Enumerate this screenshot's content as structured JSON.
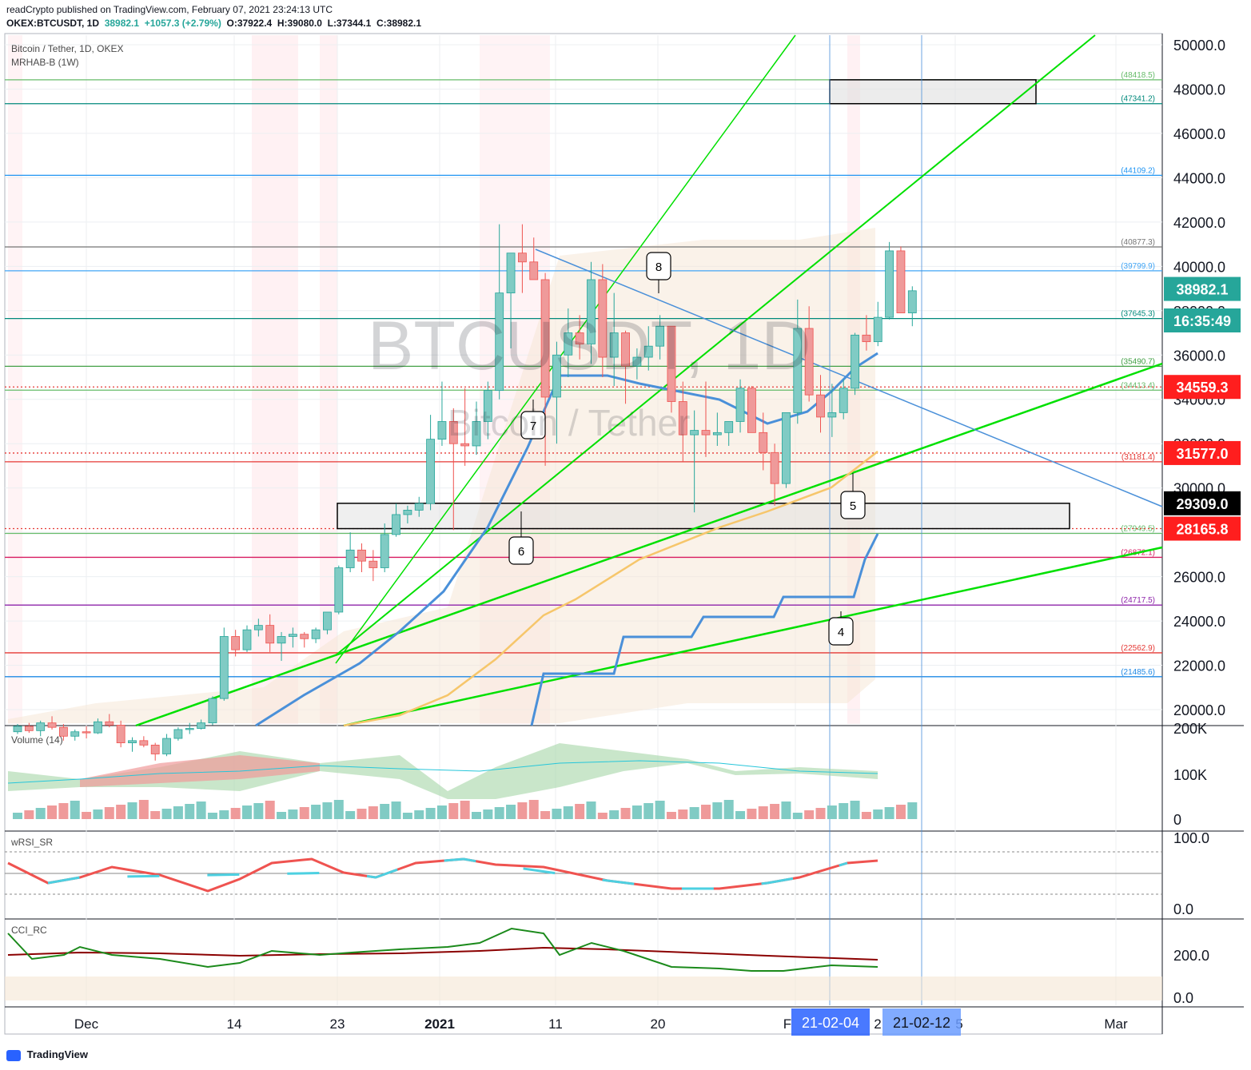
{
  "header": {
    "publisher": "readCrypto published on TradingView.com, February 07, 2021 23:24:13 UTC",
    "symbol": "OKEX:BTCUSDT, 1D",
    "last": "38982.1",
    "change": "+1057.3 (+2.79%)",
    "open": "O:37922.4",
    "high": "H:39080.0",
    "low": "L:37344.1",
    "close": "C:38982.1"
  },
  "legend": {
    "title": "Bitcoin / Tether, 1D, OKEX",
    "indicator": "MRHAB-B (1W)"
  },
  "watermark": {
    "symbol": "BTCUSDT, 1D",
    "name": "Bitcoin / Tether"
  },
  "panes": {
    "volume": "Volume (14)",
    "rsi": "wRSI_SR",
    "cci": "CCI_RC"
  },
  "footer": {
    "brand": "TradingView"
  },
  "colors": {
    "up": "#26a69a",
    "down": "#ef5350",
    "trend_green": "#00e000",
    "trend_blue": "#4a90d9"
  },
  "chart_data": {
    "type": "candlestick",
    "price_axis": {
      "ticks": [
        "20000.0",
        "22000.0",
        "24000.0",
        "26000.0",
        "28000.0",
        "30000.0",
        "32000.0",
        "34000.0",
        "36000.0",
        "38000.0",
        "40000.0",
        "42000.0",
        "44000.0",
        "46000.0",
        "48000.0",
        "50000.0"
      ],
      "range": [
        19300,
        50600
      ]
    },
    "x_ticks": [
      "Dec",
      "14",
      "23",
      "2021",
      "11",
      "20",
      "F",
      "2",
      "5",
      "Mar"
    ],
    "x_highlights": [
      "21-02-04",
      "21-02-12"
    ],
    "price_badges": [
      {
        "label": "38982.1",
        "value": 38982.1,
        "color": "#26a69a"
      },
      {
        "label": "16:35:49",
        "value": 37560,
        "color": "#26a69a"
      },
      {
        "label": "34559.3",
        "value": 34559.3,
        "color": "#ff1e1e"
      },
      {
        "label": "31577.0",
        "value": 31577.0,
        "color": "#ff1e1e"
      },
      {
        "label": "29309.0",
        "value": 29309.0,
        "color": "#000000"
      },
      {
        "label": "28165.8",
        "value": 28165.8,
        "color": "#ff1e1e"
      }
    ],
    "levels": [
      {
        "label": "(48418.5)",
        "value": 48418.5,
        "color": "#66bb6a"
      },
      {
        "label": "(47341.2)",
        "value": 47341.2,
        "color": "#00897b"
      },
      {
        "label": "(44109.2)",
        "value": 44109.2,
        "color": "#2196f3"
      },
      {
        "label": "(40877.3)",
        "value": 40877.3,
        "color": "#757575"
      },
      {
        "label": "(39799.9)",
        "value": 39799.9,
        "color": "#42a5f5"
      },
      {
        "label": "(37645.3)",
        "value": 37645.3,
        "color": "#00897b"
      },
      {
        "label": "(35490.7)",
        "value": 35490.7,
        "color": "#43a047"
      },
      {
        "label": "(34413.4)",
        "value": 34413.4,
        "color": "#66bb6a"
      },
      {
        "label": "(31181.4)",
        "value": 31181.4,
        "color": "#e53935"
      },
      {
        "label": "(27949.5)",
        "value": 27949.5,
        "color": "#66bb6a"
      },
      {
        "label": "(26872.1)",
        "value": 26872.1,
        "color": "#d81b60"
      },
      {
        "label": "(24717.5)",
        "value": 24717.5,
        "color": "#8e24aa"
      },
      {
        "label": "(22562.9)",
        "value": 22562.9,
        "color": "#e53935"
      },
      {
        "label": "(21485.6)",
        "value": 21485.6,
        "color": "#1e88e5"
      }
    ],
    "callouts": [
      "4",
      "5",
      "6",
      "7",
      "8"
    ],
    "volume_axis": [
      "200K",
      "100K",
      "0"
    ],
    "rsi_axis": [
      "100.0",
      "0.0"
    ],
    "cci_axis": [
      "200.0",
      "0.0"
    ],
    "candles_ohlc": [
      [
        19000,
        19350,
        18900,
        19250
      ],
      [
        19250,
        19400,
        18950,
        19050
      ],
      [
        19050,
        19500,
        18800,
        19400
      ],
      [
        19400,
        19700,
        19100,
        19200
      ],
      [
        19200,
        19350,
        18600,
        18800
      ],
      [
        18800,
        19100,
        18600,
        19000
      ],
      [
        19000,
        19250,
        18700,
        18950
      ],
      [
        18950,
        19600,
        18900,
        19450
      ],
      [
        19450,
        19800,
        19200,
        19300
      ],
      [
        19300,
        19500,
        18300,
        18500
      ],
      [
        18500,
        18750,
        18100,
        18600
      ],
      [
        18600,
        18800,
        18300,
        18400
      ],
      [
        18400,
        18500,
        17700,
        18000
      ],
      [
        18000,
        18900,
        17900,
        18700
      ],
      [
        18700,
        19200,
        18600,
        19100
      ],
      [
        19100,
        19400,
        18900,
        19150
      ],
      [
        19150,
        19550,
        19100,
        19400
      ],
      [
        19400,
        20600,
        19300,
        20500
      ],
      [
        20500,
        23700,
        20400,
        23300
      ],
      [
        23300,
        23600,
        22400,
        22700
      ],
      [
        22700,
        23800,
        22600,
        23600
      ],
      [
        23600,
        24100,
        23300,
        23800
      ],
      [
        23800,
        24300,
        22600,
        23000
      ],
      [
        23000,
        23500,
        22200,
        23300
      ],
      [
        23300,
        23700,
        22800,
        23400
      ],
      [
        23400,
        23500,
        22800,
        23200
      ],
      [
        23200,
        23700,
        23000,
        23600
      ],
      [
        23600,
        24400,
        23400,
        24400
      ],
      [
        24400,
        26500,
        24300,
        26400
      ],
      [
        26400,
        28000,
        26200,
        27200
      ],
      [
        27200,
        27500,
        26200,
        26700
      ],
      [
        26700,
        27200,
        25800,
        26400
      ],
      [
        26400,
        28400,
        26200,
        27900
      ],
      [
        27900,
        29300,
        27800,
        28800
      ],
      [
        28800,
        29200,
        28400,
        29000
      ],
      [
        29000,
        29600,
        28700,
        29300
      ],
      [
        29300,
        33300,
        29000,
        32200
      ],
      [
        32200,
        34800,
        31900,
        33000
      ],
      [
        33000,
        33600,
        28100,
        32000
      ],
      [
        32000,
        34500,
        31000,
        31900
      ],
      [
        31900,
        33900,
        31500,
        33000
      ],
      [
        33000,
        34800,
        32200,
        34400
      ],
      [
        34400,
        41900,
        34000,
        38800
      ],
      [
        38800,
        40400,
        36300,
        40600
      ],
      [
        40600,
        41900,
        38800,
        40200
      ],
      [
        40200,
        41300,
        39700,
        39400
      ],
      [
        39400,
        39700,
        31000,
        34100
      ],
      [
        34100,
        36600,
        32000,
        36000
      ],
      [
        36000,
        38100,
        35000,
        37000
      ],
      [
        37000,
        37800,
        35800,
        36500
      ],
      [
        36500,
        40200,
        35600,
        39400
      ],
      [
        39400,
        40100,
        35000,
        35900
      ],
      [
        35900,
        38800,
        34600,
        37000
      ],
      [
        37000,
        37100,
        33800,
        35500
      ],
      [
        35500,
        36300,
        34900,
        35900
      ],
      [
        35900,
        37300,
        35300,
        36400
      ],
      [
        36400,
        37800,
        35800,
        37300
      ],
      [
        37300,
        37300,
        33400,
        33900
      ],
      [
        33900,
        34800,
        31200,
        32400
      ],
      [
        32400,
        33500,
        28900,
        32600
      ],
      [
        32600,
        34800,
        31400,
        32400
      ],
      [
        32400,
        33400,
        31900,
        32500
      ],
      [
        32500,
        33000,
        31900,
        33000
      ],
      [
        33000,
        34900,
        32500,
        34500
      ],
      [
        34500,
        34600,
        32900,
        32500
      ],
      [
        32500,
        33400,
        30800,
        31600
      ],
      [
        31600,
        32000,
        29200,
        30200
      ],
      [
        30200,
        33300,
        30000,
        33400
      ],
      [
        33400,
        38500,
        32900,
        37200
      ],
      [
        37200,
        38200,
        33900,
        34200
      ],
      [
        34200,
        35100,
        32500,
        33200
      ],
      [
        33200,
        34700,
        32300,
        33400
      ],
      [
        33400,
        34900,
        33100,
        34500
      ],
      [
        34500,
        37000,
        34200,
        36900
      ],
      [
        36900,
        37800,
        36200,
        36600
      ],
      [
        36600,
        38400,
        36400,
        37700
      ],
      [
        37700,
        41100,
        37600,
        40700
      ],
      [
        40700,
        40900,
        37900,
        37900
      ],
      [
        37900,
        39100,
        37300,
        38900
      ]
    ]
  }
}
